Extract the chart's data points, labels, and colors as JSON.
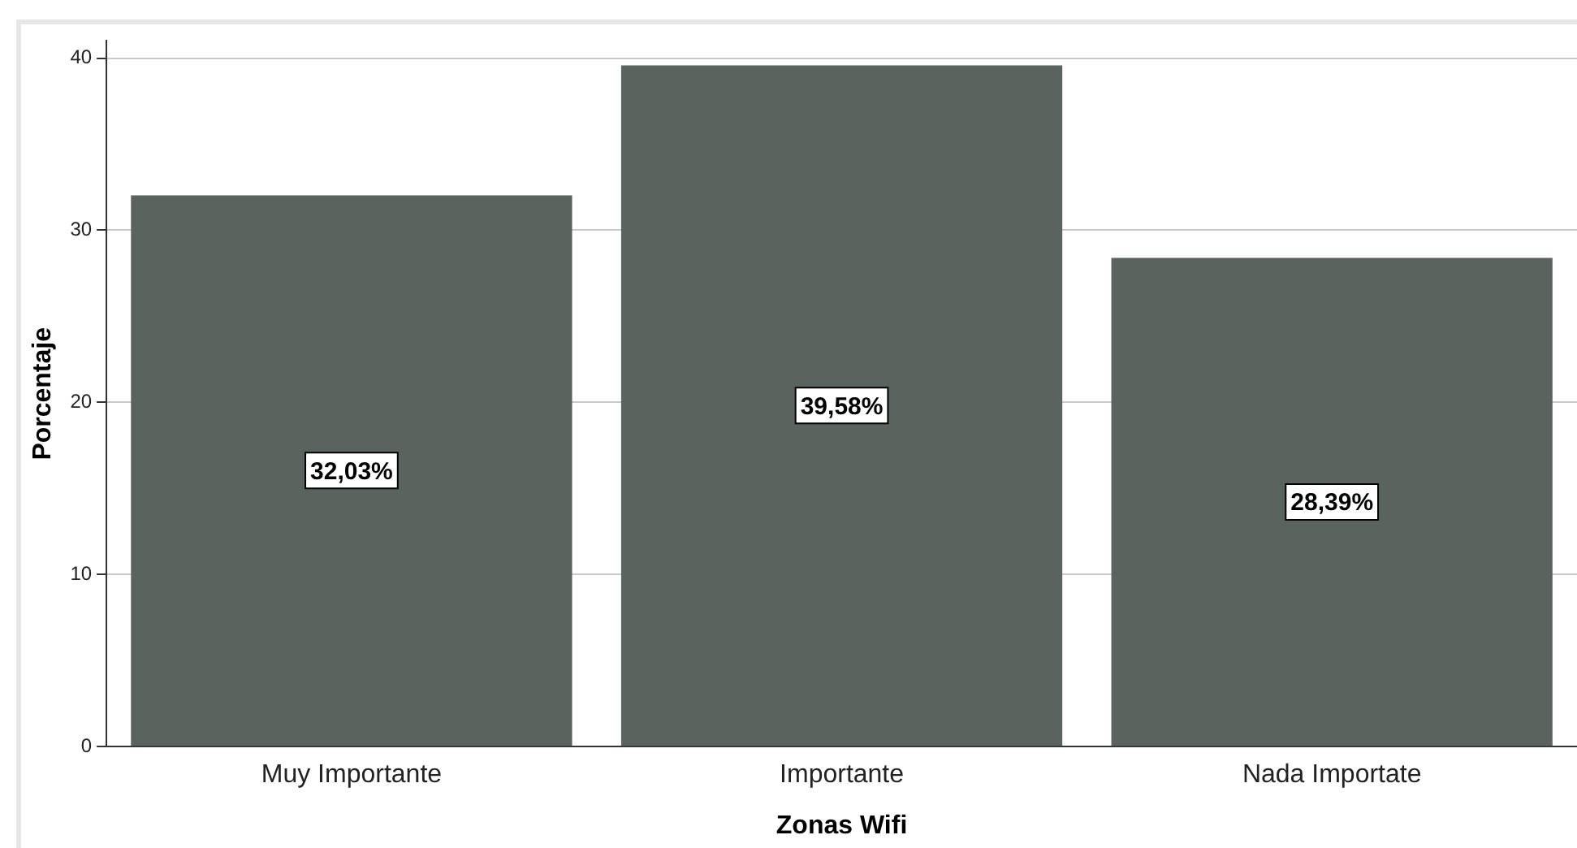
{
  "chart_data": {
    "type": "bar",
    "xlabel": "Zonas Wifi",
    "ylabel": "Porcentaje",
    "categories": [
      "Muy Importante",
      "Importante",
      "Nada Importate"
    ],
    "values": [
      32.03,
      39.58,
      28.39
    ],
    "color": "#5a635d",
    "value_labels": [
      "32,03%",
      "39,58%",
      "28,39%"
    ],
    "ylim": [
      0,
      41
    ],
    "yticks": [
      0,
      10,
      20,
      30,
      40
    ],
    "grid": "y",
    "legend": false
  }
}
